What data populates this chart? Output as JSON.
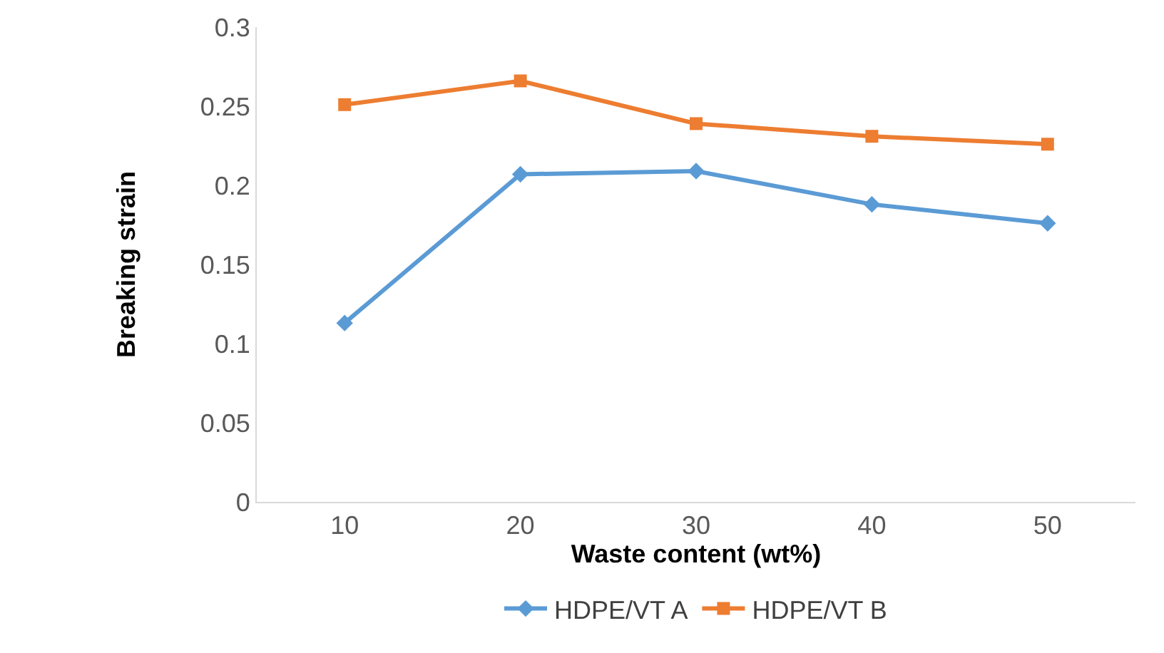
{
  "chart_data": {
    "type": "line",
    "xlabel": "Waste content (wt%)",
    "ylabel": "Breaking strain",
    "categories": [
      "10",
      "20",
      "30",
      "40",
      "50"
    ],
    "series": [
      {
        "name": "HDPE/VT A",
        "color": "#5b9bd5",
        "marker": "diamond",
        "values": [
          0.113,
          0.207,
          0.209,
          0.188,
          0.176
        ]
      },
      {
        "name": "HDPE/VT B",
        "color": "#ed7d31",
        "marker": "square",
        "values": [
          0.251,
          0.266,
          0.239,
          0.231,
          0.226
        ]
      }
    ],
    "ylim": [
      0,
      0.3
    ],
    "yticks": [
      0,
      0.05,
      0.1,
      0.15,
      0.2,
      0.25,
      0.3
    ],
    "grid": false,
    "legend": "bottom",
    "line_style": "solid"
  }
}
